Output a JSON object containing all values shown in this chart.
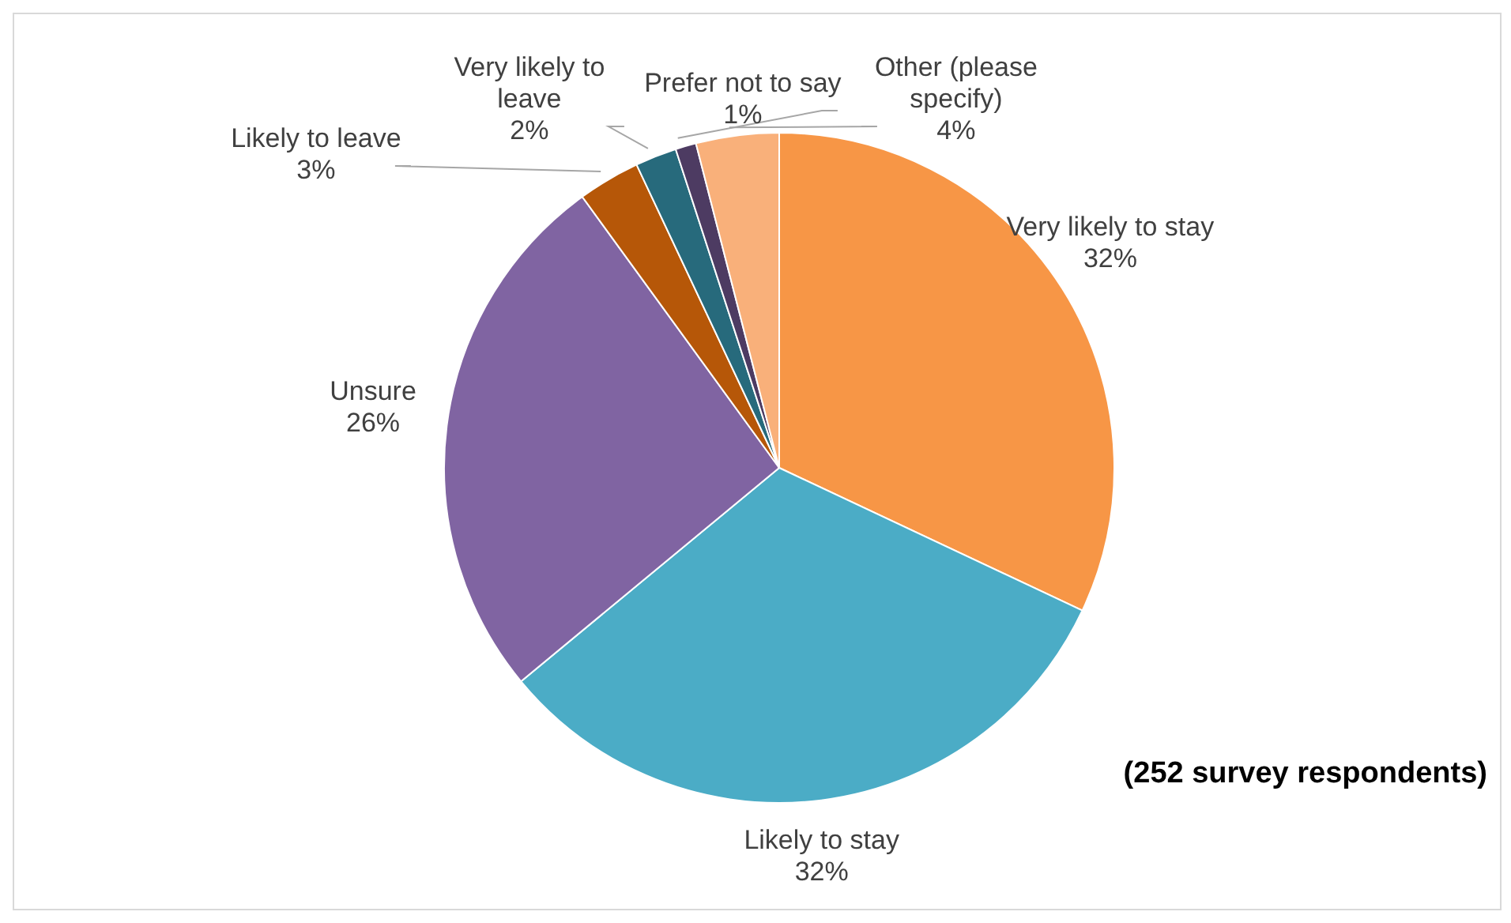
{
  "chart_data": {
    "type": "pie",
    "categories": [
      "Very likely to stay",
      "Likely to stay",
      "Unsure",
      "Likely to leave",
      "Very likely to leave",
      "Prefer not to say",
      "Other (please specify)"
    ],
    "values": [
      32,
      32,
      26,
      3,
      2,
      1,
      4
    ],
    "value_labels": [
      "32%",
      "32%",
      "26%",
      "3%",
      "2%",
      "1%",
      "4%"
    ],
    "colors": [
      "#f79646",
      "#4bacc6",
      "#8064a2",
      "#b65708",
      "#276a7c",
      "#4d3b62",
      "#f9b07a"
    ],
    "annotations": [
      "(252 survey respondents)"
    ]
  }
}
